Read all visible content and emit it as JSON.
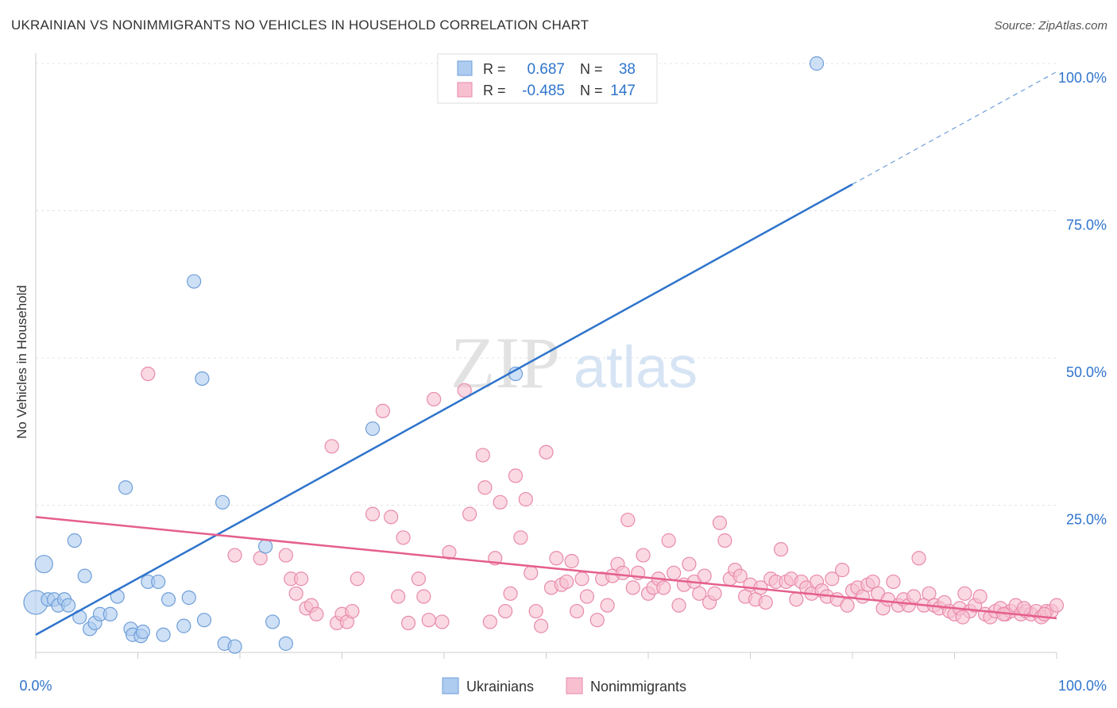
{
  "header": {
    "title": "UKRAINIAN VS NONIMMIGRANTS NO VEHICLES IN HOUSEHOLD CORRELATION CHART",
    "source": "Source: ZipAtlas.com"
  },
  "watermark": {
    "zip": "ZIP",
    "atlas": "atlas"
  },
  "legend_box": {
    "rows": [
      {
        "r_label": "R =",
        "r_value": "0.687",
        "n_label": "N =",
        "n_value": "38"
      },
      {
        "r_label": "R =",
        "r_value": "-0.485",
        "n_label": "N =",
        "n_value": "147"
      }
    ]
  },
  "chart_data": {
    "type": "scatter",
    "xlabel": "",
    "ylabel": "No Vehicles in Household",
    "xlim": [
      0,
      100
    ],
    "ylim": [
      0,
      100
    ],
    "x_tick_labels": [
      "0.0%",
      "100.0%"
    ],
    "y_tick_labels": [
      {
        "value": 100,
        "label": "100.0%"
      },
      {
        "value": 75,
        "label": "75.0%"
      },
      {
        "value": 50,
        "label": "50.0%"
      },
      {
        "value": 25,
        "label": "25.0%"
      }
    ],
    "grid": true,
    "legend_position": "bottom",
    "series": [
      {
        "name": "Ukrainians",
        "color": "#aecbf0",
        "stroke": "#6f9fd8",
        "line_color": "#2f74cc",
        "r": 0.687,
        "n": 38,
        "trend": {
          "x0": 0,
          "y0": 3.0,
          "x1": 80,
          "y1": 79.5,
          "dashed_to_x": 100,
          "dashed_to_y": 98.6
        },
        "points": [
          [
            0,
            8.5
          ],
          [
            0.8,
            15
          ],
          [
            1.2,
            9
          ],
          [
            1.8,
            9
          ],
          [
            2.2,
            8
          ],
          [
            2.8,
            9
          ],
          [
            3.2,
            8
          ],
          [
            3.8,
            19
          ],
          [
            4.3,
            6
          ],
          [
            4.8,
            13
          ],
          [
            5.3,
            4
          ],
          [
            5.8,
            5
          ],
          [
            6.3,
            6.5
          ],
          [
            7.3,
            6.5
          ],
          [
            8,
            9.5
          ],
          [
            8.8,
            28
          ],
          [
            9.3,
            4
          ],
          [
            9.5,
            3
          ],
          [
            10.3,
            2.8
          ],
          [
            11,
            12
          ],
          [
            10.5,
            3.5
          ],
          [
            12,
            12
          ],
          [
            12.5,
            3
          ],
          [
            13,
            9
          ],
          [
            14.5,
            4.5
          ],
          [
            15,
            9.3
          ],
          [
            15.5,
            63
          ],
          [
            16.3,
            46.5
          ],
          [
            16.5,
            5.5
          ],
          [
            18.3,
            25.5
          ],
          [
            18.5,
            1.5
          ],
          [
            19.5,
            1
          ],
          [
            22.5,
            18
          ],
          [
            23.2,
            5.2
          ],
          [
            24.5,
            1.5
          ],
          [
            33,
            38
          ],
          [
            47,
            47.3
          ],
          [
            76.5,
            100
          ]
        ]
      },
      {
        "name": "Nonimmigrants",
        "color": "#f7bfd0",
        "stroke": "#e98aab",
        "line_color": "#e55f8c",
        "r": -0.485,
        "n": 147,
        "trend": {
          "x0": 0,
          "y0": 23.0,
          "x1": 100,
          "y1": 5.8
        },
        "points": [
          [
            11,
            47.3
          ],
          [
            19.5,
            16.5
          ],
          [
            22,
            16
          ],
          [
            24.5,
            16.5
          ],
          [
            25,
            12.5
          ],
          [
            25.5,
            10
          ],
          [
            26,
            12.5
          ],
          [
            26.5,
            7.5
          ],
          [
            27,
            8
          ],
          [
            27.5,
            6.5
          ],
          [
            29,
            35
          ],
          [
            29.5,
            5
          ],
          [
            30,
            6.5
          ],
          [
            30.5,
            5.2
          ],
          [
            31,
            7
          ],
          [
            31.5,
            12.5
          ],
          [
            33,
            23.5
          ],
          [
            34,
            41
          ],
          [
            34.8,
            23
          ],
          [
            35.5,
            9.5
          ],
          [
            36,
            19.5
          ],
          [
            36.5,
            5
          ],
          [
            37.5,
            12.5
          ],
          [
            38,
            9.5
          ],
          [
            38.5,
            5.5
          ],
          [
            39,
            43
          ],
          [
            39.8,
            5.2
          ],
          [
            40.5,
            17
          ],
          [
            42,
            44.5
          ],
          [
            42.5,
            23.5
          ],
          [
            43.8,
            33.5
          ],
          [
            44,
            28
          ],
          [
            44.5,
            5.2
          ],
          [
            45,
            16
          ],
          [
            45.5,
            25.5
          ],
          [
            46,
            7
          ],
          [
            46.5,
            10
          ],
          [
            47,
            30
          ],
          [
            47.5,
            19.5
          ],
          [
            48,
            26
          ],
          [
            48.5,
            13.5
          ],
          [
            49,
            7
          ],
          [
            49.5,
            4.5
          ],
          [
            50,
            34
          ],
          [
            50.5,
            11
          ],
          [
            51,
            16
          ],
          [
            51.5,
            11.5
          ],
          [
            52,
            12
          ],
          [
            52.5,
            15.5
          ],
          [
            53,
            7
          ],
          [
            53.5,
            12.5
          ],
          [
            54,
            9.5
          ],
          [
            55,
            5.5
          ],
          [
            55.5,
            12.5
          ],
          [
            56,
            8
          ],
          [
            56.5,
            13
          ],
          [
            57,
            15
          ],
          [
            57.5,
            13.5
          ],
          [
            58,
            22.5
          ],
          [
            58.5,
            11
          ],
          [
            59,
            13.5
          ],
          [
            59.5,
            16.5
          ],
          [
            60,
            10
          ],
          [
            60.5,
            11
          ],
          [
            61,
            12.5
          ],
          [
            61.5,
            11
          ],
          [
            62,
            19
          ],
          [
            62.5,
            13.5
          ],
          [
            63,
            8
          ],
          [
            63.5,
            11.5
          ],
          [
            64,
            15
          ],
          [
            64.5,
            12
          ],
          [
            65,
            10
          ],
          [
            65.5,
            13
          ],
          [
            66,
            8.5
          ],
          [
            66.5,
            10
          ],
          [
            67,
            22
          ],
          [
            67.5,
            19
          ],
          [
            68,
            12.5
          ],
          [
            68.5,
            14
          ],
          [
            69,
            13
          ],
          [
            69.5,
            9.5
          ],
          [
            70,
            11.5
          ],
          [
            70.5,
            9
          ],
          [
            71,
            11
          ],
          [
            71.5,
            8.5
          ],
          [
            72,
            12.5
          ],
          [
            72.5,
            12
          ],
          [
            73,
            17.5
          ],
          [
            73.5,
            12
          ],
          [
            74,
            12.5
          ],
          [
            74.5,
            9
          ],
          [
            75,
            12
          ],
          [
            75.5,
            11
          ],
          [
            76,
            10
          ],
          [
            76.5,
            12
          ],
          [
            77,
            10.5
          ],
          [
            77.5,
            9.5
          ],
          [
            78,
            12.5
          ],
          [
            78.5,
            9
          ],
          [
            79,
            14
          ],
          [
            79.5,
            8
          ],
          [
            80,
            10.5
          ],
          [
            80.5,
            11
          ],
          [
            81,
            9.5
          ],
          [
            81.5,
            11.5
          ],
          [
            82,
            12
          ],
          [
            82.5,
            10
          ],
          [
            83,
            7.5
          ],
          [
            83.5,
            9
          ],
          [
            84,
            12
          ],
          [
            84.5,
            8
          ],
          [
            85,
            9
          ],
          [
            85.5,
            8
          ],
          [
            86,
            9.5
          ],
          [
            86.5,
            16
          ],
          [
            87,
            8
          ],
          [
            87.5,
            10
          ],
          [
            88,
            8
          ],
          [
            88.5,
            7.5
          ],
          [
            89,
            8.5
          ],
          [
            89.5,
            7
          ],
          [
            90,
            6.5
          ],
          [
            90.5,
            7.5
          ],
          [
            91,
            10
          ],
          [
            91.5,
            7
          ],
          [
            92,
            8
          ],
          [
            92.5,
            9.5
          ],
          [
            93,
            6.5
          ],
          [
            93.5,
            6
          ],
          [
            94,
            7
          ],
          [
            94.5,
            7.5
          ],
          [
            95,
            6.5
          ],
          [
            95.5,
            7
          ],
          [
            96,
            8
          ],
          [
            96.5,
            6.5
          ],
          [
            97,
            7
          ],
          [
            97.5,
            6.5
          ],
          [
            98,
            7
          ],
          [
            98.5,
            6
          ],
          [
            99,
            7
          ],
          [
            99.5,
            7
          ],
          [
            100,
            8
          ],
          [
            90.8,
            6
          ],
          [
            94.8,
            6.5
          ],
          [
            96.8,
            7.5
          ],
          [
            98.8,
            6.5
          ]
        ]
      }
    ]
  }
}
